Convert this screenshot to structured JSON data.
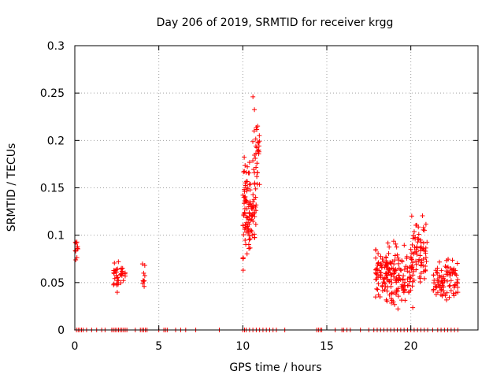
{
  "chart_data": {
    "type": "scatter",
    "title": "Day 206 of 2019, SRMTID for receiver krgg",
    "xlabel": "GPS time / hours",
    "ylabel": "SRMTID / TECUs",
    "xlim": [
      0,
      24
    ],
    "ylim": [
      0,
      0.3
    ],
    "grid": true,
    "x_ticks": [
      0,
      5,
      10,
      15,
      20
    ],
    "y_ticks": [
      0,
      0.05,
      0.1,
      0.15,
      0.2,
      0.25,
      0.3
    ],
    "x_tick_labels": [
      "0",
      "5",
      "10",
      "15",
      "20"
    ],
    "y_tick_labels": [
      "0",
      "0.05",
      "0.1",
      "0.15",
      "0.2",
      "0.25",
      "0.3"
    ],
    "marker": "+",
    "series": [
      {
        "name": "SRMTID",
        "color": "#ff0000",
        "clusters": [
          {
            "x_range": [
              0.0,
              0.2
            ],
            "y_range": [
              0.062,
              0.1
            ],
            "count": 10
          },
          {
            "x_range": [
              2.3,
              2.6
            ],
            "y_range": [
              0.035,
              0.08
            ],
            "count": 22
          },
          {
            "x_range": [
              2.7,
              3.0
            ],
            "y_range": [
              0.048,
              0.07
            ],
            "count": 14
          },
          {
            "x_range": [
              4.0,
              4.2
            ],
            "y_range": [
              0.03,
              0.077
            ],
            "count": 10
          },
          {
            "x_range": [
              10.0,
              10.8
            ],
            "y_range": [
              0.055,
              0.2
            ],
            "count": 110
          },
          {
            "x_range": [
              10.5,
              11.0
            ],
            "y_range": [
              0.12,
              0.255
            ],
            "count": 35
          },
          {
            "x_range": [
              17.9,
              20.2
            ],
            "y_range": [
              0.015,
              0.1
            ],
            "count": 190
          },
          {
            "x_range": [
              20.0,
              21.0
            ],
            "y_range": [
              0.03,
              0.13
            ],
            "count": 70
          },
          {
            "x_range": [
              21.3,
              22.8
            ],
            "y_range": [
              0.025,
              0.08
            ],
            "count": 90
          }
        ],
        "zero_points_x": [
          0.1,
          0.2,
          0.3,
          0.4,
          0.5,
          0.7,
          1.0,
          1.3,
          1.6,
          1.8,
          2.2,
          2.3,
          2.4,
          2.5,
          2.6,
          2.7,
          2.8,
          2.9,
          3.0,
          3.1,
          3.6,
          3.9,
          4.0,
          4.1,
          4.2,
          4.3,
          5.0,
          5.3,
          5.4,
          5.5,
          6.0,
          6.3,
          6.6,
          7.2,
          8.6,
          10.0,
          10.1,
          10.2,
          10.4,
          10.6,
          10.8,
          11.0,
          11.2,
          11.4,
          11.6,
          11.8,
          12.0,
          12.5,
          14.4,
          14.5,
          14.6,
          14.7,
          15.5,
          15.9,
          16.0,
          16.2,
          16.4,
          17.0,
          17.5,
          17.8,
          18.0,
          18.2,
          18.4,
          18.6,
          18.8,
          19.0,
          19.2,
          19.4,
          19.6,
          19.8,
          20.0,
          20.2,
          20.4,
          20.6,
          20.8,
          21.0,
          21.3,
          21.6,
          21.8,
          22.0,
          22.2,
          22.4,
          22.6,
          22.8
        ]
      }
    ]
  }
}
